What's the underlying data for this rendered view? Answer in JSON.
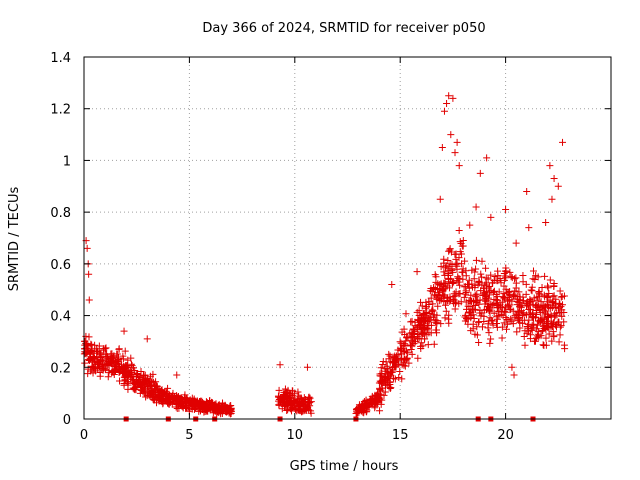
{
  "chart_data": {
    "type": "scatter",
    "title": "Day 366 of 2024, SRMTID for receiver p050",
    "xlabel": "GPS time / hours",
    "ylabel": "SRMTID / TECUs",
    "xlim": [
      0,
      25
    ],
    "ylim": [
      0,
      1.4
    ],
    "xticks": [
      0,
      5,
      10,
      15,
      20
    ],
    "yticks": [
      0,
      0.2,
      0.4,
      0.6,
      0.8,
      1.0,
      1.2,
      1.4
    ],
    "xtick_labels": [
      "0",
      "5",
      "10",
      "15",
      "20"
    ],
    "ytick_labels": [
      "0",
      "0.2",
      "0.4",
      "0.6",
      "0.8",
      "1",
      "1.2",
      "1.4"
    ],
    "grid": true,
    "marker": "+",
    "color": "#e00000",
    "segments": [
      {
        "start": 0.0,
        "end": 1.0,
        "base_start": 0.26,
        "base_end": 0.2,
        "spread": 0.09
      },
      {
        "start": 1.0,
        "end": 2.3,
        "base_start": 0.22,
        "base_end": 0.18,
        "spread": 0.08
      },
      {
        "start": 2.3,
        "end": 3.5,
        "base_start": 0.16,
        "base_end": 0.1,
        "spread": 0.06
      },
      {
        "start": 3.5,
        "end": 5.0,
        "base_start": 0.1,
        "base_end": 0.05,
        "spread": 0.04
      },
      {
        "start": 5.0,
        "end": 7.0,
        "base_start": 0.06,
        "base_end": 0.03,
        "spread": 0.03
      },
      {
        "start": 9.2,
        "end": 10.8,
        "base_start": 0.08,
        "base_end": 0.05,
        "spread": 0.05
      },
      {
        "start": 12.9,
        "end": 14.0,
        "base_start": 0.03,
        "base_end": 0.08,
        "spread": 0.03
      },
      {
        "start": 14.0,
        "end": 15.0,
        "base_start": 0.12,
        "base_end": 0.25,
        "spread": 0.1
      },
      {
        "start": 15.0,
        "end": 16.5,
        "base_start": 0.25,
        "base_end": 0.4,
        "spread": 0.14
      },
      {
        "start": 16.5,
        "end": 18.0,
        "base_start": 0.45,
        "base_end": 0.6,
        "spread": 0.2
      },
      {
        "start": 18.0,
        "end": 20.0,
        "base_start": 0.45,
        "base_end": 0.45,
        "spread": 0.18
      },
      {
        "start": 20.0,
        "end": 22.8,
        "base_start": 0.45,
        "base_end": 0.4,
        "spread": 0.16
      }
    ],
    "peaks": [
      {
        "x": 0.1,
        "y": 0.69
      },
      {
        "x": 0.15,
        "y": 0.66
      },
      {
        "x": 0.2,
        "y": 0.6
      },
      {
        "x": 0.22,
        "y": 0.56
      },
      {
        "x": 0.25,
        "y": 0.46
      },
      {
        "x": 1.9,
        "y": 0.34
      },
      {
        "x": 3.0,
        "y": 0.31
      },
      {
        "x": 4.4,
        "y": 0.17
      },
      {
        "x": 9.3,
        "y": 0.21
      },
      {
        "x": 10.6,
        "y": 0.2
      },
      {
        "x": 14.6,
        "y": 0.52
      },
      {
        "x": 15.8,
        "y": 0.57
      },
      {
        "x": 16.9,
        "y": 0.85
      },
      {
        "x": 17.1,
        "y": 1.19
      },
      {
        "x": 17.2,
        "y": 1.22
      },
      {
        "x": 17.3,
        "y": 1.25
      },
      {
        "x": 17.5,
        "y": 1.24
      },
      {
        "x": 17.4,
        "y": 1.1
      },
      {
        "x": 17.6,
        "y": 1.03
      },
      {
        "x": 17.7,
        "y": 1.07
      },
      {
        "x": 17.8,
        "y": 0.98
      },
      {
        "x": 17.0,
        "y": 1.05
      },
      {
        "x": 18.3,
        "y": 0.75
      },
      {
        "x": 18.6,
        "y": 0.82
      },
      {
        "x": 18.8,
        "y": 0.95
      },
      {
        "x": 19.1,
        "y": 1.01
      },
      {
        "x": 19.3,
        "y": 0.78
      },
      {
        "x": 20.0,
        "y": 0.81
      },
      {
        "x": 20.5,
        "y": 0.68
      },
      {
        "x": 21.0,
        "y": 0.88
      },
      {
        "x": 21.1,
        "y": 0.74
      },
      {
        "x": 21.9,
        "y": 0.76
      },
      {
        "x": 22.1,
        "y": 0.98
      },
      {
        "x": 22.3,
        "y": 0.93
      },
      {
        "x": 22.5,
        "y": 0.9
      },
      {
        "x": 22.7,
        "y": 1.07
      },
      {
        "x": 22.2,
        "y": 0.85
      },
      {
        "x": 20.3,
        "y": 0.2
      },
      {
        "x": 20.4,
        "y": 0.17
      }
    ],
    "baseline_markers": [
      2.0,
      4.0,
      5.3,
      6.2,
      9.3,
      12.9,
      18.7,
      19.3,
      21.3
    ]
  }
}
